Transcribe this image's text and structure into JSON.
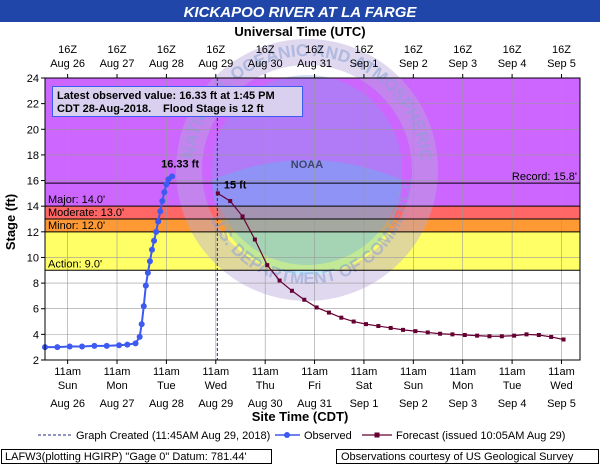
{
  "chart_data": {
    "type": "line",
    "title": "KICKAPOO RIVER AT LA FARGE",
    "top_axis_label": "Universal Time (UTC)",
    "xlabel": "Site Time (CDT)",
    "ylabel": "Stage (ft)",
    "ylim": [
      2,
      24
    ],
    "y_ticks": [
      2,
      4,
      6,
      8,
      10,
      12,
      14,
      16,
      18,
      20,
      22,
      24
    ],
    "grid": true,
    "x_range": [
      "2018-08-26T00:00",
      "2018-09-05T20:00"
    ],
    "top_ticks": [
      {
        "l1": "16Z",
        "l2": "Aug 26"
      },
      {
        "l1": "16Z",
        "l2": "Aug 27"
      },
      {
        "l1": "16Z",
        "l2": "Aug 28"
      },
      {
        "l1": "16Z",
        "l2": "Aug 29"
      },
      {
        "l1": "16Z",
        "l2": "Aug 30"
      },
      {
        "l1": "16Z",
        "l2": "Aug 31"
      },
      {
        "l1": "16Z",
        "l2": "Sep 1"
      },
      {
        "l1": "16Z",
        "l2": "Sep 2"
      },
      {
        "l1": "16Z",
        "l2": "Sep 3"
      },
      {
        "l1": "16Z",
        "l2": "Sep 4"
      },
      {
        "l1": "16Z",
        "l2": "Sep 5"
      }
    ],
    "bottom_ticks": [
      {
        "l1": "11am",
        "l2": "Sun",
        "l3": "Aug 26"
      },
      {
        "l1": "11am",
        "l2": "Mon",
        "l3": "Aug 27"
      },
      {
        "l1": "11am",
        "l2": "Tue",
        "l3": "Aug 28"
      },
      {
        "l1": "11am",
        "l2": "Wed",
        "l3": "Aug 29"
      },
      {
        "l1": "11am",
        "l2": "Thu",
        "l3": "Aug 30"
      },
      {
        "l1": "11am",
        "l2": "Fri",
        "l3": "Aug 31"
      },
      {
        "l1": "11am",
        "l2": "Sat",
        "l3": "Sep 1"
      },
      {
        "l1": "11am",
        "l2": "Sun",
        "l3": "Sep 2"
      },
      {
        "l1": "11am",
        "l2": "Mon",
        "l3": "Sep 3"
      },
      {
        "l1": "11am",
        "l2": "Tue",
        "l3": "Sep 4"
      },
      {
        "l1": "11am",
        "l2": "Wed",
        "l3": "Sep 5"
      }
    ],
    "bands": [
      {
        "from": 15.8,
        "to": 24,
        "color": "#cc66ff"
      },
      {
        "from": 14,
        "to": 15.8,
        "color": "#cc66ff"
      },
      {
        "from": 13,
        "to": 14,
        "color": "#ff6666"
      },
      {
        "from": 12,
        "to": 13,
        "color": "#ff9933"
      },
      {
        "from": 9,
        "to": 12,
        "color": "#ffff66"
      },
      {
        "from": 2,
        "to": 9,
        "color": "#ffffff"
      }
    ],
    "thresholds": [
      {
        "label": "Record: 15.8'",
        "value": 15.8,
        "side": "right"
      },
      {
        "label": "Major: 14.0'",
        "value": 14.0,
        "side": "left"
      },
      {
        "label": "Moderate: 13.0'",
        "value": 13.0,
        "side": "left"
      },
      {
        "label": "Minor: 12.0'",
        "value": 12.0,
        "side": "left"
      },
      {
        "label": "Action: 9.0'",
        "value": 9.0,
        "side": "left"
      }
    ],
    "latest_box": {
      "line1": "Latest observed value: 16.33 ft at 1:45 PM",
      "line2": "CDT 28-Aug-2018.",
      "line2b": "Flood Stage is 12 ft"
    },
    "graph_created": "2018-08-29T11:45",
    "series": [
      {
        "name": "Observed",
        "color": "#3d5af1",
        "label": "16.33 ft",
        "points": [
          [
            "2018-08-26T00:00",
            3.0
          ],
          [
            "2018-08-26T06:00",
            3.0
          ],
          [
            "2018-08-26T12:00",
            3.05
          ],
          [
            "2018-08-26T18:00",
            3.05
          ],
          [
            "2018-08-27T00:00",
            3.1
          ],
          [
            "2018-08-27T06:00",
            3.1
          ],
          [
            "2018-08-27T12:00",
            3.15
          ],
          [
            "2018-08-27T16:00",
            3.2
          ],
          [
            "2018-08-27T20:00",
            3.3
          ],
          [
            "2018-08-27T22:00",
            3.8
          ],
          [
            "2018-08-27T23:00",
            4.8
          ],
          [
            "2018-08-28T00:00",
            6.2
          ],
          [
            "2018-08-28T01:00",
            7.8
          ],
          [
            "2018-08-28T02:00",
            8.8
          ],
          [
            "2018-08-28T03:00",
            9.7
          ],
          [
            "2018-08-28T04:00",
            10.6
          ],
          [
            "2018-08-28T05:00",
            11.3
          ],
          [
            "2018-08-28T06:00",
            12.0
          ],
          [
            "2018-08-28T07:00",
            12.8
          ],
          [
            "2018-08-28T08:00",
            13.6
          ],
          [
            "2018-08-28T09:00",
            14.4
          ],
          [
            "2018-08-28T10:00",
            15.1
          ],
          [
            "2018-08-28T11:00",
            15.7
          ],
          [
            "2018-08-28T12:00",
            16.1
          ],
          [
            "2018-08-28T13:45",
            16.33
          ]
        ]
      },
      {
        "name": "Forecast (issued 10:05AM Aug 29)",
        "color": "#660033",
        "label": "15 ft",
        "points": [
          [
            "2018-08-29T12:00",
            15.0
          ],
          [
            "2018-08-29T18:00",
            14.4
          ],
          [
            "2018-08-30T00:00",
            13.2
          ],
          [
            "2018-08-30T06:00",
            11.4
          ],
          [
            "2018-08-30T12:00",
            9.4
          ],
          [
            "2018-08-30T18:00",
            8.2
          ],
          [
            "2018-08-31T00:00",
            7.4
          ],
          [
            "2018-08-31T06:00",
            6.7
          ],
          [
            "2018-08-31T12:00",
            6.1
          ],
          [
            "2018-08-31T18:00",
            5.7
          ],
          [
            "2018-09-01T00:00",
            5.3
          ],
          [
            "2018-09-01T06:00",
            5.0
          ],
          [
            "2018-09-01T12:00",
            4.8
          ],
          [
            "2018-09-01T18:00",
            4.65
          ],
          [
            "2018-09-02T00:00",
            4.5
          ],
          [
            "2018-09-02T06:00",
            4.35
          ],
          [
            "2018-09-02T12:00",
            4.25
          ],
          [
            "2018-09-02T18:00",
            4.15
          ],
          [
            "2018-09-03T00:00",
            4.05
          ],
          [
            "2018-09-03T06:00",
            4.0
          ],
          [
            "2018-09-03T12:00",
            3.95
          ],
          [
            "2018-09-03T18:00",
            3.9
          ],
          [
            "2018-09-04T00:00",
            3.85
          ],
          [
            "2018-09-04T06:00",
            3.85
          ],
          [
            "2018-09-04T12:00",
            3.9
          ],
          [
            "2018-09-04T18:00",
            4.0
          ],
          [
            "2018-09-05T00:00",
            3.95
          ],
          [
            "2018-09-05T06:00",
            3.8
          ],
          [
            "2018-09-05T12:00",
            3.6
          ]
        ]
      }
    ],
    "legend": {
      "graph_created": "Graph Created (11:45AM Aug 29, 2018)",
      "observed": "Observed",
      "forecast": "Forecast (issued 10:05AM Aug 29)"
    }
  },
  "footer": {
    "left": "LAFW3(plotting HGIRP) \"Gage 0\" Datum: 781.44'",
    "right": "Observations courtesy of US Geological Survey"
  },
  "watermark": {
    "text": "NOAA",
    "ring_text": "NATIONAL OCEANIC AND ATMOSPHERIC ADMINISTRATION",
    "ring_bottom": "U.S. DEPARTMENT OF COMMERCE"
  },
  "colors": {
    "title_bar": "#1f46a8",
    "observed": "#3d5af1",
    "forecast": "#660033"
  }
}
